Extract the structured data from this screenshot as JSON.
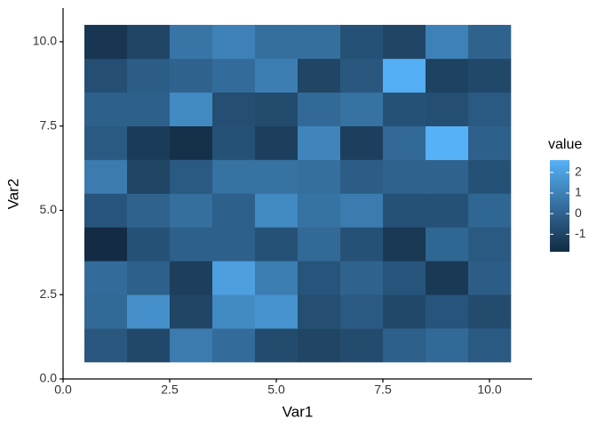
{
  "chart_data": {
    "type": "heatmap",
    "x_label": "Var1",
    "y_label": "Var2",
    "x": [
      1,
      2,
      3,
      4,
      5,
      6,
      7,
      8,
      9,
      10
    ],
    "y": [
      1,
      2,
      3,
      4,
      5,
      6,
      7,
      8,
      9,
      10
    ],
    "z": [
      [
        -0.4,
        -0.9,
        0.8,
        0.3,
        -0.8,
        -1.0,
        -0.8,
        -0.1,
        0.2,
        -0.3
      ],
      [
        0.2,
        1.5,
        -1.0,
        1.3,
        1.6,
        -0.7,
        -0.3,
        -0.9,
        -0.5,
        -0.8
      ],
      [
        0.3,
        -0.1,
        -1.2,
        2.0,
        0.9,
        -0.5,
        0.0,
        -0.5,
        -1.4,
        -0.2
      ],
      [
        -1.85,
        -0.6,
        -0.1,
        -0.1,
        -0.6,
        0.2,
        -0.6,
        -1.4,
        0.1,
        -0.3
      ],
      [
        -0.5,
        0.0,
        0.4,
        -0.1,
        1.3,
        0.5,
        0.8,
        -0.6,
        -0.6,
        0.1
      ],
      [
        0.8,
        -1.0,
        -0.3,
        0.5,
        0.5,
        0.4,
        -0.2,
        0.0,
        0.0,
        -0.6
      ],
      [
        -0.3,
        -1.3,
        -1.7,
        -0.6,
        -1.2,
        1.1,
        -1.2,
        0.2,
        2.6,
        -0.1
      ],
      [
        -0.1,
        -0.1,
        1.3,
        -0.7,
        -0.8,
        0.2,
        0.5,
        -0.6,
        -0.7,
        -0.3
      ],
      [
        -0.7,
        -0.2,
        0.0,
        0.3,
        0.9,
        -1.0,
        -0.4,
        2.5,
        -1.1,
        -0.9
      ],
      [
        -1.5,
        -1.0,
        0.6,
        1.0,
        0.4,
        0.4,
        -0.6,
        -1.0,
        1.0,
        0.0
      ]
    ],
    "xlim": [
      0,
      11
    ],
    "ylim": [
      0,
      11
    ],
    "xticks": [
      {
        "value": 0,
        "label": "0.0"
      },
      2.5,
      {
        "value": 5,
        "label": "5.0"
      },
      7.5,
      {
        "value": 10,
        "label": "10.0"
      }
    ],
    "yticks": [
      {
        "value": 0,
        "label": "0.0"
      },
      2.5,
      {
        "value": 5,
        "label": "5.0"
      },
      7.5,
      {
        "value": 10,
        "label": "10.0"
      }
    ],
    "color_low": "#132B43",
    "color_high": "#56B1F7",
    "legend_title": "value",
    "legend_ticks": [
      2,
      1,
      0,
      -1
    ]
  }
}
